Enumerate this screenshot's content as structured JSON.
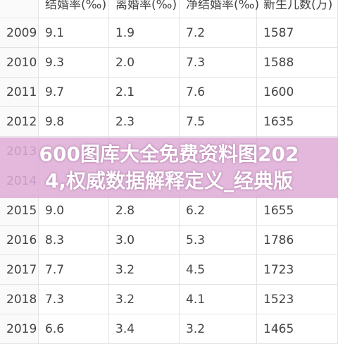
{
  "table": {
    "header": [
      "结婚率(‰)",
      "离婚率(‰)",
      "净结婚率(‰)",
      "新生儿数(万)"
    ],
    "rows": [
      [
        "2009",
        "9.1",
        "1.9",
        "7.2",
        "1587"
      ],
      [
        "2010",
        "9.3",
        "2.0",
        "7.3",
        "1588"
      ],
      [
        "2011",
        "9.7",
        "2.1",
        "7.6",
        "1600"
      ],
      [
        "2012",
        "9.8",
        "2.3",
        "7.5",
        "1635"
      ],
      [
        "2013",
        null,
        null,
        null,
        null
      ],
      [
        "2014",
        null,
        null,
        null,
        null
      ],
      [
        "2015",
        "9.0",
        "2.8",
        "6.2",
        "1655"
      ],
      [
        "2016",
        "8.3",
        "3.0",
        "5.3",
        "1786"
      ],
      [
        "2017",
        "7.7",
        "3.2",
        "4.5",
        "1723"
      ],
      [
        "2018",
        "7.3",
        "3.2",
        "4.1",
        "1523"
      ],
      [
        "2019",
        "6.6",
        "3.4",
        "3.2",
        "1465"
      ]
    ]
  },
  "overlay": {
    "lines": [
      "600图库大全免费资料图202",
      "4,权威数据解释定义_经典版"
    ]
  }
}
